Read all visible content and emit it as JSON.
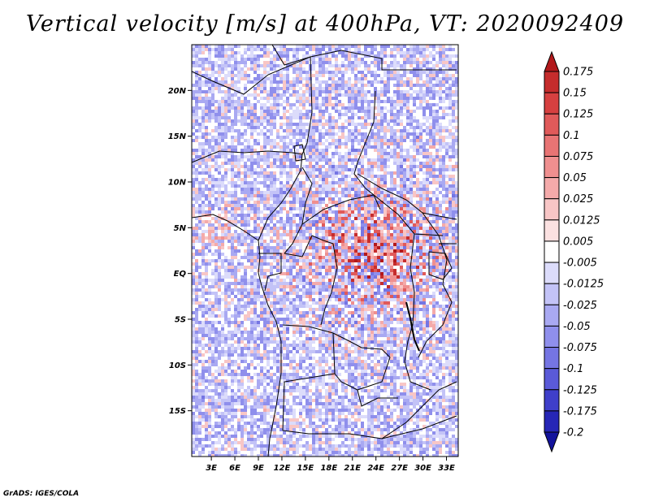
{
  "title": "Vertical velocity [m/s] at 400hPa, VT: 2020092409",
  "credit": "GrADS: IGES/COLA",
  "lat_labels": [
    "20N",
    "15N",
    "10N",
    "5N",
    "EQ",
    "5S",
    "10S",
    "15S"
  ],
  "lat_values": [
    20,
    15,
    10,
    5,
    0,
    -5,
    -10,
    -15
  ],
  "lon_labels": [
    "3E",
    "6E",
    "9E",
    "12E",
    "15E",
    "18E",
    "21E",
    "24E",
    "27E",
    "30E",
    "33E"
  ],
  "lon_values": [
    3,
    6,
    9,
    12,
    15,
    18,
    21,
    24,
    27,
    30,
    33
  ],
  "map_extent": {
    "lon_min": 0.5,
    "lon_max": 34.5,
    "lat_min": -20,
    "lat_max": 25
  },
  "colorbar": {
    "labels": [
      "0.175",
      "0.15",
      "0.125",
      "0.1",
      "0.075",
      "0.05",
      "0.025",
      "0.0125",
      "0.005",
      "-0.005",
      "-0.0125",
      "-0.025",
      "-0.05",
      "-0.075",
      "-0.1",
      "-0.125",
      "-0.175",
      "-0.2"
    ],
    "colors": [
      "#b2181b",
      "#c52c2c",
      "#d64040",
      "#e05a5a",
      "#e87474",
      "#ef8f8f",
      "#f4aaaa",
      "#f8c6c6",
      "#fbe1e1",
      "#ffffff",
      "#dcdcfb",
      "#c3c3f7",
      "#a9a9f2",
      "#8f8fec",
      "#7575e3",
      "#5a5ad8",
      "#3f3fca",
      "#2626b6",
      "#13139c"
    ]
  },
  "colors": {
    "positive": "#d03030",
    "negative": "#5050e0",
    "border": "#000000"
  }
}
